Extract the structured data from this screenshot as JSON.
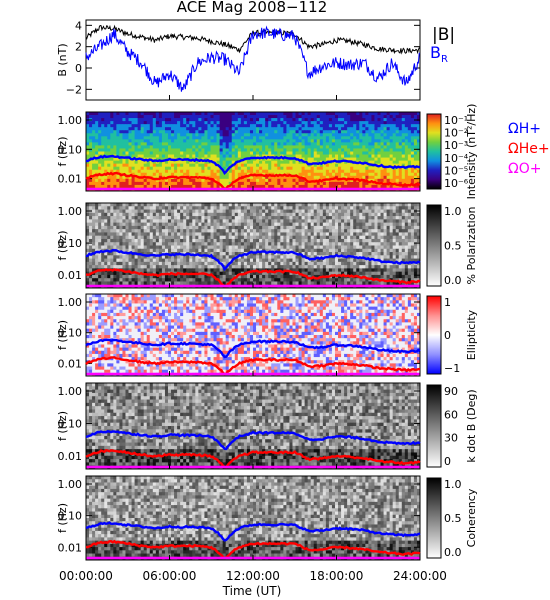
{
  "title": "ACE Mag 2008−112",
  "time_axis": {
    "label": "Time (UT)",
    "ticks": [
      "00:00:00",
      "06:00:00",
      "12:00:00",
      "18:00:00",
      "24:00:00"
    ]
  },
  "colors": {
    "proton_line": "#0000ff",
    "helium_line": "#ff0000",
    "oxygen_line": "#ff00ff",
    "btotal_line": "#000000",
    "br_line": "#0000ff"
  },
  "chart_data": [
    {
      "type": "line",
      "id": "field",
      "ylabel": "B (nT)",
      "ylim": [
        -3,
        4.5
      ],
      "yticks": [
        "4",
        "2",
        "0",
        "−2"
      ],
      "x_hours": [
        0,
        1,
        2,
        3,
        4,
        5,
        6,
        7,
        8,
        9,
        10,
        11,
        12,
        13,
        14,
        15,
        16,
        17,
        18,
        19,
        20,
        21,
        22,
        23,
        24
      ],
      "series": [
        {
          "name": "|B|",
          "values": [
            2.8,
            3.8,
            3.7,
            3.2,
            2.9,
            2.6,
            3.0,
            2.9,
            2.8,
            2.5,
            2.2,
            1.7,
            3.3,
            3.3,
            3.3,
            3.2,
            2.0,
            2.2,
            2.6,
            2.5,
            2.2,
            1.8,
            1.7,
            1.6,
            1.7
          ]
        },
        {
          "name": "B_R",
          "values": [
            1.0,
            2.0,
            3.2,
            1.5,
            0.5,
            -1.5,
            -0.5,
            -2.0,
            0.5,
            1.0,
            0.8,
            -0.5,
            3.2,
            3.3,
            3.1,
            3.0,
            -0.5,
            0.2,
            0.5,
            0.3,
            0.5,
            -1.0,
            0.5,
            -1.5,
            1.0
          ]
        }
      ],
      "legend": [
        "|B|",
        "B_R"
      ]
    },
    {
      "type": "heatmap",
      "id": "spectrum",
      "ylabel": "f (Hz)",
      "yticks": [
        "1.00",
        "0.10",
        "0.01"
      ],
      "colorbar_label": "Intensity (nT²/Hz)",
      "colorbar_ticks": [
        "10⁻¹",
        "10⁻²",
        "10⁻³",
        "10⁻⁴",
        "10⁻⁵",
        "10⁻⁶"
      ],
      "legend": [
        "ΩH+",
        "ΩHe+",
        "ΩO+"
      ]
    },
    {
      "type": "heatmap",
      "id": "polarization",
      "ylabel": "f (Hz)",
      "yticks": [
        "1.00",
        "0.10",
        "0.01"
      ],
      "colorbar_label": "% Polarization",
      "colorbar_ticks": [
        "1.0",
        "0.5",
        "0.0"
      ]
    },
    {
      "type": "heatmap",
      "id": "ellipticity",
      "ylabel": "f (Hz)",
      "yticks": [
        "1.00",
        "0.10",
        "0.01"
      ],
      "colorbar_label": "Ellipticity",
      "colorbar_ticks": [
        "1",
        "0",
        "−1"
      ]
    },
    {
      "type": "heatmap",
      "id": "kdotb",
      "ylabel": "f (Hz)",
      "yticks": [
        "1.00",
        "0.10",
        "0.01"
      ],
      "colorbar_label": "k dot B (Deg)",
      "colorbar_ticks": [
        "90",
        "60",
        "30",
        "0"
      ]
    },
    {
      "type": "heatmap",
      "id": "coherency",
      "ylabel": "f (Hz)",
      "yticks": [
        "1.00",
        "0.10",
        "0.01"
      ],
      "colorbar_label": "Coherency",
      "colorbar_ticks": [
        "1.0",
        "0.5",
        "0.0"
      ]
    }
  ],
  "gyro_lines": {
    "x_hours": [
      0,
      1,
      2,
      3,
      4,
      5,
      6,
      7,
      8,
      9,
      10,
      11,
      12,
      13,
      14,
      15,
      16,
      17,
      18,
      19,
      20,
      21,
      22,
      23,
      24
    ],
    "proton_hz": [
      0.04,
      0.055,
      0.058,
      0.05,
      0.045,
      0.04,
      0.045,
      0.044,
      0.043,
      0.04,
      0.015,
      0.04,
      0.052,
      0.052,
      0.052,
      0.05,
      0.032,
      0.034,
      0.04,
      0.038,
      0.034,
      0.028,
      0.025,
      0.024,
      0.026
    ],
    "helium_hz": [
      0.01,
      0.014,
      0.015,
      0.013,
      0.011,
      0.01,
      0.011,
      0.011,
      0.011,
      0.01,
      0.004,
      0.01,
      0.013,
      0.013,
      0.013,
      0.013,
      0.008,
      0.0085,
      0.01,
      0.0095,
      0.0085,
      0.007,
      0.0065,
      0.006,
      0.0065
    ],
    "oxygen_hz": [
      0.0027,
      0.0035,
      0.0036,
      0.0032,
      0.0029,
      0.0027,
      0.0028,
      0.0028,
      0.0028,
      0.0027,
      0.0027,
      0.0027,
      0.0033,
      0.0033,
      0.0033,
      0.0032,
      0.0027,
      0.0027,
      0.0027,
      0.0027,
      0.0027,
      0.0027,
      0.0027,
      0.0027,
      0.0027
    ]
  }
}
